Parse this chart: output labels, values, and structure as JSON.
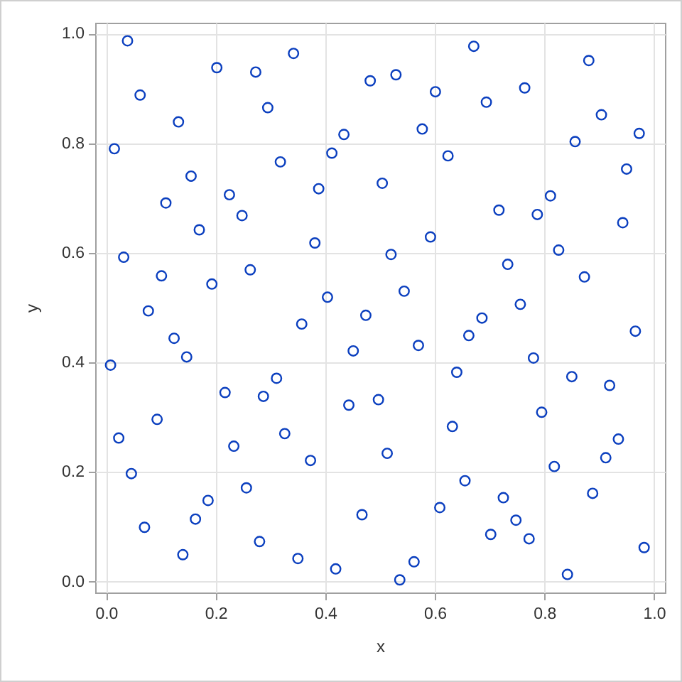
{
  "chart_data": {
    "type": "scatter",
    "xlabel": "x",
    "ylabel": "y",
    "series": [
      {
        "color": "#0b3fbf",
        "x": [
          0.039,
          0.202,
          0.273,
          0.342,
          0.482,
          0.062,
          0.295,
          0.132,
          0.434,
          0.015,
          0.412,
          0.318,
          0.155,
          0.388,
          0.504,
          0.225,
          0.109,
          0.248,
          0.17,
          0.381,
          0.032,
          0.101,
          0.263,
          0.193,
          0.404,
          0.077,
          0.474,
          0.529,
          0.671,
          0.881,
          0.601,
          0.694,
          0.764,
          0.904,
          0.577,
          0.856,
          0.973,
          0.624,
          0.95,
          0.811,
          0.717,
          0.787,
          0.943,
          0.592,
          0.52,
          0.826,
          0.733,
          0.873,
          0.544,
          0.756,
          0.124,
          0.147,
          0.357,
          0.451,
          0.008,
          0.311,
          0.217,
          0.287,
          0.443,
          0.497,
          0.093,
          0.023,
          0.326,
          0.233,
          0.373,
          0.046,
          0.256,
          0.186,
          0.163,
          0.07,
          0.467,
          0.28,
          0.14,
          0.35,
          0.419,
          0.686,
          0.662,
          0.966,
          0.57,
          0.78,
          0.64,
          0.85,
          0.919,
          0.795,
          0.632,
          0.935,
          0.513,
          0.912,
          0.818,
          0.655,
          0.725,
          0.888,
          0.609,
          0.748,
          0.702,
          0.772,
          0.982,
          0.562,
          0.536,
          0.842
        ],
        "values": [
          0.987,
          0.938,
          0.93,
          0.964,
          0.914,
          0.888,
          0.865,
          0.839,
          0.816,
          0.79,
          0.782,
          0.766,
          0.74,
          0.717,
          0.727,
          0.706,
          0.691,
          0.668,
          0.642,
          0.618,
          0.592,
          0.558,
          0.569,
          0.543,
          0.519,
          0.494,
          0.486,
          0.925,
          0.977,
          0.951,
          0.894,
          0.875,
          0.901,
          0.852,
          0.826,
          0.803,
          0.818,
          0.777,
          0.753,
          0.704,
          0.678,
          0.67,
          0.655,
          0.629,
          0.597,
          0.605,
          0.579,
          0.556,
          0.53,
          0.506,
          0.444,
          0.41,
          0.47,
          0.421,
          0.395,
          0.371,
          0.345,
          0.338,
          0.322,
          0.332,
          0.296,
          0.262,
          0.27,
          0.247,
          0.221,
          0.197,
          0.171,
          0.148,
          0.114,
          0.099,
          0.122,
          0.073,
          0.049,
          0.042,
          0.023,
          0.481,
          0.449,
          0.457,
          0.431,
          0.408,
          0.382,
          0.374,
          0.358,
          0.309,
          0.283,
          0.26,
          0.234,
          0.226,
          0.21,
          0.184,
          0.153,
          0.161,
          0.135,
          0.112,
          0.086,
          0.078,
          0.062,
          0.036,
          0.003,
          0.013
        ]
      }
    ],
    "xlim": [
      -0.02,
      1.02
    ],
    "ylim": [
      -0.02,
      1.02
    ],
    "xticks": [
      {
        "value": 0,
        "label": "0.0"
      },
      0.2,
      0.4,
      0.6,
      0.8,
      {
        "value": 1,
        "label": "1.0"
      }
    ],
    "yticks": [
      {
        "value": 0,
        "label": "0.0"
      },
      0.2,
      0.4,
      0.6,
      0.8,
      {
        "value": 1,
        "label": "1.0"
      }
    ],
    "grid": true,
    "marker": "circle"
  }
}
